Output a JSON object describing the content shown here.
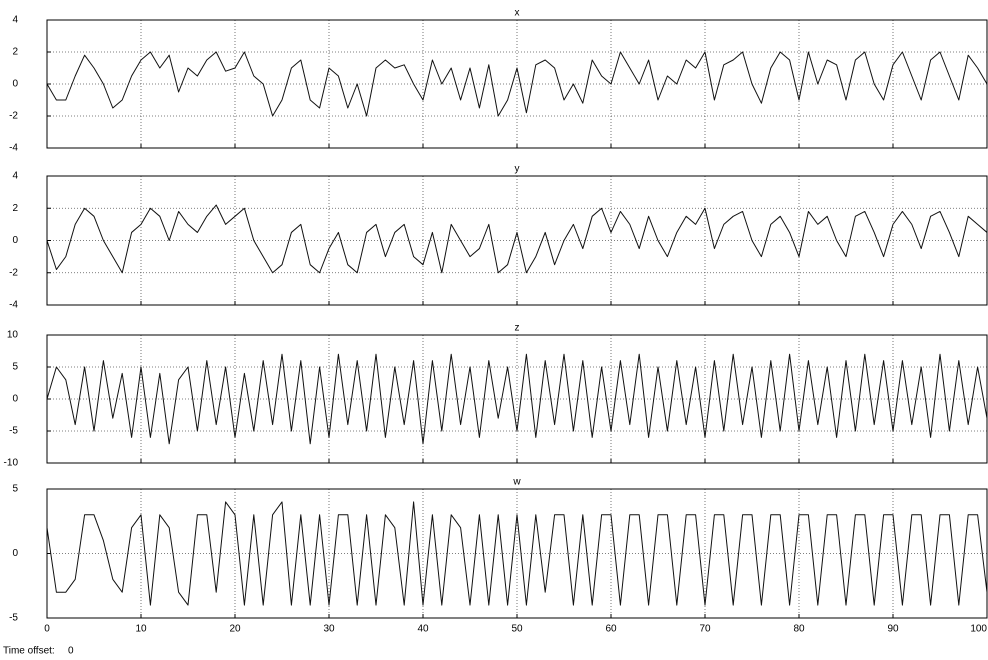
{
  "chart_data": [
    {
      "type": "line",
      "title": "x",
      "x": [
        0,
        1,
        2,
        3,
        4,
        5,
        6,
        7,
        8,
        9,
        10,
        11,
        12,
        13,
        14,
        15,
        16,
        17,
        18,
        19,
        20,
        21,
        22,
        23,
        24,
        25,
        26,
        27,
        28,
        29,
        30,
        31,
        32,
        33,
        34,
        35,
        36,
        37,
        38,
        39,
        40,
        41,
        42,
        43,
        44,
        45,
        46,
        47,
        48,
        49,
        50,
        51,
        52,
        53,
        54,
        55,
        56,
        57,
        58,
        59,
        60,
        61,
        62,
        63,
        64,
        65,
        66,
        67,
        68,
        69,
        70,
        71,
        72,
        73,
        74,
        75,
        76,
        77,
        78,
        79,
        80,
        81,
        82,
        83,
        84,
        85,
        86,
        87,
        88,
        89,
        90,
        91,
        92,
        93,
        94,
        95,
        96,
        97,
        98,
        99,
        100
      ],
      "series": [
        {
          "color": "#111111",
          "values": [
            0,
            -1,
            -1,
            0.5,
            1.8,
            1,
            0,
            -1.5,
            -1,
            0.5,
            1.5,
            2,
            1,
            1.8,
            -0.5,
            1,
            0.5,
            1.5,
            2,
            0.8,
            1,
            2,
            0.5,
            0,
            -2,
            -1,
            1,
            1.5,
            -1,
            -1.5,
            1,
            0.5,
            -1.5,
            0,
            -2,
            1,
            1.5,
            1,
            1.2,
            0,
            -1,
            1.5,
            0,
            1,
            -1,
            1,
            -1.5,
            1.2,
            -2,
            -1,
            1,
            -1.8,
            1.2,
            1.5,
            1,
            -1,
            0,
            -1.2,
            1.5,
            0.5,
            0,
            2,
            1,
            0,
            1.5,
            -1,
            0.5,
            0,
            1.5,
            1,
            2,
            -1,
            1.2,
            1.5,
            2,
            0,
            -1.2,
            1,
            2,
            1.5,
            -1,
            2,
            0,
            1.5,
            1.2,
            -1,
            1.5,
            2,
            0,
            -1,
            1.2,
            2,
            0.5,
            -1,
            1.5,
            2,
            0.5,
            -1,
            1.8,
            1,
            0
          ]
        }
      ],
      "xlim": [
        0,
        100
      ],
      "ylim": [
        -4,
        4
      ],
      "yticks": [
        -4,
        -2,
        0,
        2,
        4
      ],
      "xticks": [
        0,
        10,
        20,
        30,
        40,
        50,
        60,
        70,
        80,
        90,
        100
      ],
      "grid": true
    },
    {
      "type": "line",
      "title": "y",
      "x": [
        0,
        1,
        2,
        3,
        4,
        5,
        6,
        7,
        8,
        9,
        10,
        11,
        12,
        13,
        14,
        15,
        16,
        17,
        18,
        19,
        20,
        21,
        22,
        23,
        24,
        25,
        26,
        27,
        28,
        29,
        30,
        31,
        32,
        33,
        34,
        35,
        36,
        37,
        38,
        39,
        40,
        41,
        42,
        43,
        44,
        45,
        46,
        47,
        48,
        49,
        50,
        51,
        52,
        53,
        54,
        55,
        56,
        57,
        58,
        59,
        60,
        61,
        62,
        63,
        64,
        65,
        66,
        67,
        68,
        69,
        70,
        71,
        72,
        73,
        74,
        75,
        76,
        77,
        78,
        79,
        80,
        81,
        82,
        83,
        84,
        85,
        86,
        87,
        88,
        89,
        90,
        91,
        92,
        93,
        94,
        95,
        96,
        97,
        98,
        99,
        100
      ],
      "series": [
        {
          "color": "#111111",
          "values": [
            0,
            -1.8,
            -1,
            1,
            2,
            1.5,
            0,
            -1,
            -2,
            0.5,
            1,
            2,
            1.5,
            0,
            1.8,
            1,
            0.5,
            1.5,
            2.2,
            1,
            1.5,
            2,
            0,
            -1,
            -2,
            -1.5,
            0.5,
            1,
            -1.5,
            -2,
            -0.5,
            0.5,
            -1.5,
            -2,
            0.5,
            1,
            -1,
            0.5,
            1,
            -1,
            -1.5,
            0.5,
            -2,
            1,
            0,
            -1,
            -0.5,
            1,
            -2,
            -1.5,
            0.5,
            -2,
            -1,
            0.5,
            -1.5,
            0,
            1,
            -0.5,
            1.5,
            2,
            0.5,
            1.8,
            1,
            -0.5,
            1.5,
            0,
            -1,
            0.5,
            1.5,
            1,
            2,
            -0.5,
            1,
            1.5,
            1.8,
            0,
            -1,
            1,
            1.5,
            0.5,
            -1,
            1.8,
            1,
            1.5,
            0,
            -1,
            1.5,
            1.8,
            0.5,
            -1,
            1,
            1.8,
            1,
            -0.5,
            1.5,
            1.8,
            0.5,
            -1,
            1.5,
            1,
            0.5
          ]
        }
      ],
      "xlim": [
        0,
        100
      ],
      "ylim": [
        -4,
        4
      ],
      "yticks": [
        -4,
        -2,
        0,
        2,
        4
      ],
      "xticks": [
        0,
        10,
        20,
        30,
        40,
        50,
        60,
        70,
        80,
        90,
        100
      ],
      "grid": true
    },
    {
      "type": "line",
      "title": "z",
      "x": [
        0,
        1,
        2,
        3,
        4,
        5,
        6,
        7,
        8,
        9,
        10,
        11,
        12,
        13,
        14,
        15,
        16,
        17,
        18,
        19,
        20,
        21,
        22,
        23,
        24,
        25,
        26,
        27,
        28,
        29,
        30,
        31,
        32,
        33,
        34,
        35,
        36,
        37,
        38,
        39,
        40,
        41,
        42,
        43,
        44,
        45,
        46,
        47,
        48,
        49,
        50,
        51,
        52,
        53,
        54,
        55,
        56,
        57,
        58,
        59,
        60,
        61,
        62,
        63,
        64,
        65,
        66,
        67,
        68,
        69,
        70,
        71,
        72,
        73,
        74,
        75,
        76,
        77,
        78,
        79,
        80,
        81,
        82,
        83,
        84,
        85,
        86,
        87,
        88,
        89,
        90,
        91,
        92,
        93,
        94,
        95,
        96,
        97,
        98,
        99,
        100
      ],
      "series": [
        {
          "color": "#111111",
          "values": [
            0,
            5,
            3,
            -4,
            5,
            -5,
            6,
            -3,
            4,
            -6,
            5,
            -6,
            4,
            -7,
            3,
            5,
            -5,
            6,
            -4,
            5,
            -6,
            4,
            -5,
            6,
            -4,
            7,
            -5,
            6,
            -7,
            5,
            -6,
            7,
            -4,
            6,
            -5,
            7,
            -6,
            5,
            -4,
            6,
            -7,
            6,
            -5,
            7,
            -4,
            5,
            -6,
            6,
            -3,
            5,
            -5,
            7,
            -6,
            6,
            -4,
            7,
            -5,
            6,
            -6,
            5,
            -5,
            6,
            -4,
            7,
            -6,
            5,
            -5,
            6,
            -4,
            5,
            -6,
            6,
            -5,
            7,
            -4,
            5,
            -6,
            6,
            -5,
            7,
            -5,
            6,
            -4,
            5,
            -6,
            6,
            -5,
            7,
            -4,
            6,
            -5,
            6,
            -4,
            5,
            -6,
            7,
            -5,
            6,
            -4,
            5,
            -3
          ]
        }
      ],
      "xlim": [
        0,
        100
      ],
      "ylim": [
        -10,
        10
      ],
      "yticks": [
        -10,
        -5,
        0,
        5,
        10
      ],
      "xticks": [
        0,
        10,
        20,
        30,
        40,
        50,
        60,
        70,
        80,
        90,
        100
      ],
      "grid": true
    },
    {
      "type": "line",
      "title": "w",
      "x": [
        0,
        1,
        2,
        3,
        4,
        5,
        6,
        7,
        8,
        9,
        10,
        11,
        12,
        13,
        14,
        15,
        16,
        17,
        18,
        19,
        20,
        21,
        22,
        23,
        24,
        25,
        26,
        27,
        28,
        29,
        30,
        31,
        32,
        33,
        34,
        35,
        36,
        37,
        38,
        39,
        40,
        41,
        42,
        43,
        44,
        45,
        46,
        47,
        48,
        49,
        50,
        51,
        52,
        53,
        54,
        55,
        56,
        57,
        58,
        59,
        60,
        61,
        62,
        63,
        64,
        65,
        66,
        67,
        68,
        69,
        70,
        71,
        72,
        73,
        74,
        75,
        76,
        77,
        78,
        79,
        80,
        81,
        82,
        83,
        84,
        85,
        86,
        87,
        88,
        89,
        90,
        91,
        92,
        93,
        94,
        95,
        96,
        97,
        98,
        99,
        100
      ],
      "series": [
        {
          "color": "#111111",
          "values": [
            2,
            -3,
            -3,
            -2,
            3,
            3,
            1,
            -2,
            -3,
            2,
            3,
            -4,
            3,
            2,
            -3,
            -4,
            3,
            3,
            -3,
            4,
            3,
            -4,
            3,
            -4,
            3,
            4,
            -4,
            3,
            -4,
            3,
            -4,
            3,
            3,
            -4,
            3,
            -4,
            3,
            2,
            -4,
            4,
            -4,
            3,
            -4,
            3,
            2,
            -4,
            3,
            -4,
            3,
            -4,
            3,
            -4,
            3,
            -3,
            3,
            3,
            -4,
            3,
            -4,
            3,
            3,
            -4,
            3,
            3,
            -4,
            3,
            3,
            -4,
            3,
            3,
            -4,
            3,
            3,
            -4,
            3,
            3,
            -4,
            3,
            3,
            -4,
            3,
            3,
            -4,
            3,
            3,
            -4,
            3,
            3,
            -4,
            3,
            3,
            -4,
            3,
            3,
            -4,
            3,
            3,
            -4,
            3,
            3,
            -3
          ]
        }
      ],
      "xlim": [
        0,
        100
      ],
      "ylim": [
        -5,
        5
      ],
      "yticks": [
        -5,
        0,
        5
      ],
      "xticks": [
        0,
        10,
        20,
        30,
        40,
        50,
        60,
        70,
        80,
        90,
        100
      ],
      "grid": true
    }
  ],
  "footer": {
    "label": "Time offset:",
    "value": 0
  }
}
